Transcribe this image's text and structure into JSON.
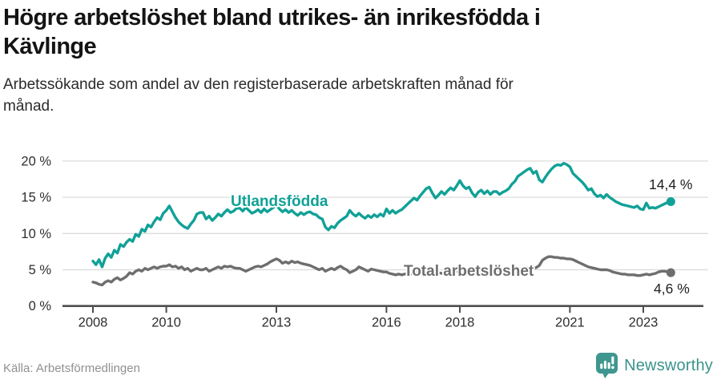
{
  "header": {
    "title_lines": [
      "Högre arbetslöshet bland utrikes- än inrikesfödda i",
      "Kävlinge"
    ],
    "subtitle_lines": [
      "Arbetssökande som andel av den registerbaserade arbetskraften månad för",
      "månad."
    ]
  },
  "chart_data": {
    "type": "line",
    "frequency": "monthly",
    "x_start": "2008-01",
    "x_end": "2023-10",
    "unit": "%",
    "ylim": [
      0,
      21.5
    ],
    "grid": "horizontal",
    "y_ticks": [
      {
        "value": 20,
        "label": "20 %"
      },
      {
        "value": 15,
        "label": "15 %"
      },
      {
        "value": 10,
        "label": "10 %"
      },
      {
        "value": 5,
        "label": "5 %"
      },
      {
        "value": 0,
        "label": "0 %"
      }
    ],
    "x_ticks": [
      {
        "year": 2008,
        "label": "2008"
      },
      {
        "year": 2010,
        "label": "2010"
      },
      {
        "year": 2013,
        "label": "2013"
      },
      {
        "year": 2016,
        "label": "2016"
      },
      {
        "year": 2018,
        "label": "2018"
      },
      {
        "year": 2021,
        "label": "2021"
      },
      {
        "year": 2023,
        "label": "2023"
      }
    ],
    "series": [
      {
        "name": "Utlandsfödda",
        "color": "#11a197",
        "end_value": 14.4,
        "end_label": "14,4 %",
        "values": [
          6.2,
          5.7,
          6.4,
          5.4,
          6.6,
          7.2,
          6.7,
          7.7,
          7.3,
          8.5,
          8.2,
          8.8,
          9.2,
          8.9,
          9.9,
          9.6,
          10.6,
          10.3,
          11.2,
          10.9,
          11.6,
          12.2,
          11.9,
          12.8,
          13.2,
          13.8,
          13.0,
          12.2,
          11.6,
          11.2,
          10.9,
          10.7,
          11.3,
          11.8,
          12.7,
          12.9,
          12.9,
          12.0,
          12.4,
          11.8,
          12.2,
          12.7,
          12.4,
          12.9,
          13.3,
          12.9,
          13.1,
          13.5,
          13.5,
          13.1,
          13.6,
          13.2,
          12.8,
          13.0,
          13.3,
          12.9,
          13.4,
          13.0,
          13.3,
          13.6,
          13.9,
          13.4,
          13.0,
          13.3,
          12.9,
          13.2,
          12.8,
          12.5,
          12.9,
          12.6,
          12.9,
          13.0,
          12.7,
          12.6,
          12.2,
          12.0,
          10.9,
          10.5,
          11.0,
          10.8,
          11.4,
          11.8,
          12.1,
          12.4,
          13.2,
          12.7,
          12.4,
          12.8,
          12.4,
          12.1,
          12.5,
          12.2,
          12.6,
          12.3,
          12.7,
          12.4,
          13.4,
          12.8,
          13.2,
          12.8,
          13.1,
          13.3,
          13.7,
          14.1,
          14.5,
          14.9,
          14.6,
          15.2,
          15.7,
          16.2,
          16.4,
          15.6,
          14.9,
          15.3,
          15.8,
          15.4,
          15.9,
          16.3,
          16.0,
          16.6,
          17.3,
          16.6,
          16.2,
          16.4,
          15.6,
          15.1,
          15.7,
          16.0,
          15.5,
          15.9,
          15.4,
          15.8,
          15.8,
          15.4,
          15.7,
          15.9,
          16.2,
          16.8,
          17.2,
          17.9,
          18.2,
          18.5,
          18.8,
          19.0,
          18.3,
          18.6,
          17.4,
          17.1,
          17.8,
          18.4,
          18.9,
          19.3,
          19.5,
          19.4,
          19.7,
          19.5,
          19.2,
          18.3,
          17.9,
          17.5,
          17.1,
          16.6,
          16.0,
          16.2,
          15.5,
          15.1,
          15.3,
          14.9,
          15.4,
          15.0,
          14.7,
          14.4,
          14.2,
          14.0,
          13.9,
          13.8,
          13.7,
          13.6,
          13.8,
          13.4,
          13.3,
          14.2,
          13.5,
          13.6,
          13.5,
          13.7,
          13.9,
          14.1,
          14.3,
          14.4
        ]
      },
      {
        "name": "Total arbetslöshet",
        "color": "#6e6e6e",
        "end_value": 4.6,
        "end_label": "4,6 %",
        "values": [
          3.3,
          3.2,
          3.0,
          2.9,
          3.3,
          3.5,
          3.3,
          3.7,
          3.9,
          3.6,
          3.8,
          4.1,
          4.6,
          4.4,
          4.8,
          5.0,
          4.8,
          5.2,
          5.0,
          5.2,
          5.4,
          5.2,
          5.4,
          5.5,
          5.5,
          5.7,
          5.4,
          5.5,
          5.2,
          5.4,
          5.0,
          5.2,
          4.8,
          5.0,
          5.2,
          5.0,
          5.0,
          5.2,
          4.8,
          5.0,
          5.2,
          5.4,
          5.2,
          5.5,
          5.4,
          5.5,
          5.3,
          5.2,
          5.2,
          5.0,
          4.8,
          5.0,
          5.2,
          5.4,
          5.5,
          5.4,
          5.6,
          5.8,
          6.1,
          6.3,
          6.5,
          6.3,
          5.9,
          6.1,
          5.9,
          6.2,
          6.0,
          6.1,
          5.9,
          5.8,
          5.7,
          5.6,
          5.4,
          5.2,
          5.0,
          5.2,
          4.8,
          5.0,
          5.2,
          5.0,
          5.3,
          5.5,
          5.2,
          5.0,
          4.6,
          4.8,
          5.0,
          5.4,
          5.2,
          5.0,
          4.8,
          5.1,
          5.0,
          4.9,
          4.8,
          4.7,
          4.7,
          4.5,
          4.4,
          4.3,
          4.4,
          4.3,
          4.4,
          4.5,
          4.4,
          4.5,
          4.6,
          4.5,
          4.5,
          4.6,
          4.5,
          4.4,
          4.5,
          4.6,
          4.5,
          4.6,
          4.7,
          4.6,
          4.7,
          4.8,
          4.7,
          4.8,
          4.7,
          4.6,
          4.7,
          4.8,
          4.7,
          4.8,
          4.9,
          4.8,
          4.9,
          5.0,
          4.9,
          5.0,
          4.9,
          5.0,
          5.1,
          5.0,
          5.1,
          5.2,
          5.1,
          5.2,
          5.3,
          5.2,
          5.2,
          5.3,
          5.6,
          6.3,
          6.6,
          6.8,
          6.8,
          6.7,
          6.7,
          6.6,
          6.6,
          6.5,
          6.5,
          6.4,
          6.2,
          6.0,
          5.8,
          5.6,
          5.4,
          5.3,
          5.2,
          5.1,
          5.0,
          5.0,
          5.0,
          4.9,
          4.7,
          4.6,
          4.5,
          4.4,
          4.4,
          4.3,
          4.3,
          4.3,
          4.2,
          4.2,
          4.3,
          4.4,
          4.3,
          4.4,
          4.5,
          4.7,
          4.8,
          4.8,
          4.7,
          4.6
        ]
      }
    ]
  },
  "footer": {
    "source": "Källa: Arbetsförmedlingen",
    "brand": "Newsworthy"
  },
  "colors": {
    "teal": "#11a197",
    "gray": "#6e6e6e",
    "grid": "#dcdcdc",
    "axis": "#4d4d4d",
    "tick_text": "#2e2e2e",
    "brand_teal": "#3e978f"
  }
}
